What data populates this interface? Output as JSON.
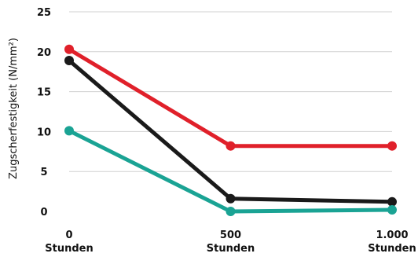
{
  "chart_data": {
    "type": "line",
    "title": "",
    "xlabel": "",
    "ylabel": "Zugscherfestigkeit (N/mm²)",
    "ylim": [
      0,
      25
    ],
    "yticks": [
      "0",
      "5",
      "10",
      "15",
      "20",
      "25"
    ],
    "categories": [
      {
        "line1": "0",
        "line2": "Stunden"
      },
      {
        "line1": "500",
        "line2": "Stunden"
      },
      {
        "line1": "1.000",
        "line2": "Stunden"
      }
    ],
    "x": [
      0,
      500,
      1000
    ],
    "grid": true,
    "legend": "none",
    "series": [
      {
        "color": "#e0202a",
        "values": [
          20.3,
          8.2,
          8.2
        ]
      },
      {
        "color": "#1a1a1a",
        "values": [
          18.9,
          1.6,
          1.2
        ]
      },
      {
        "color": "#1aa394",
        "values": [
          10.1,
          0.0,
          0.2
        ]
      }
    ]
  }
}
